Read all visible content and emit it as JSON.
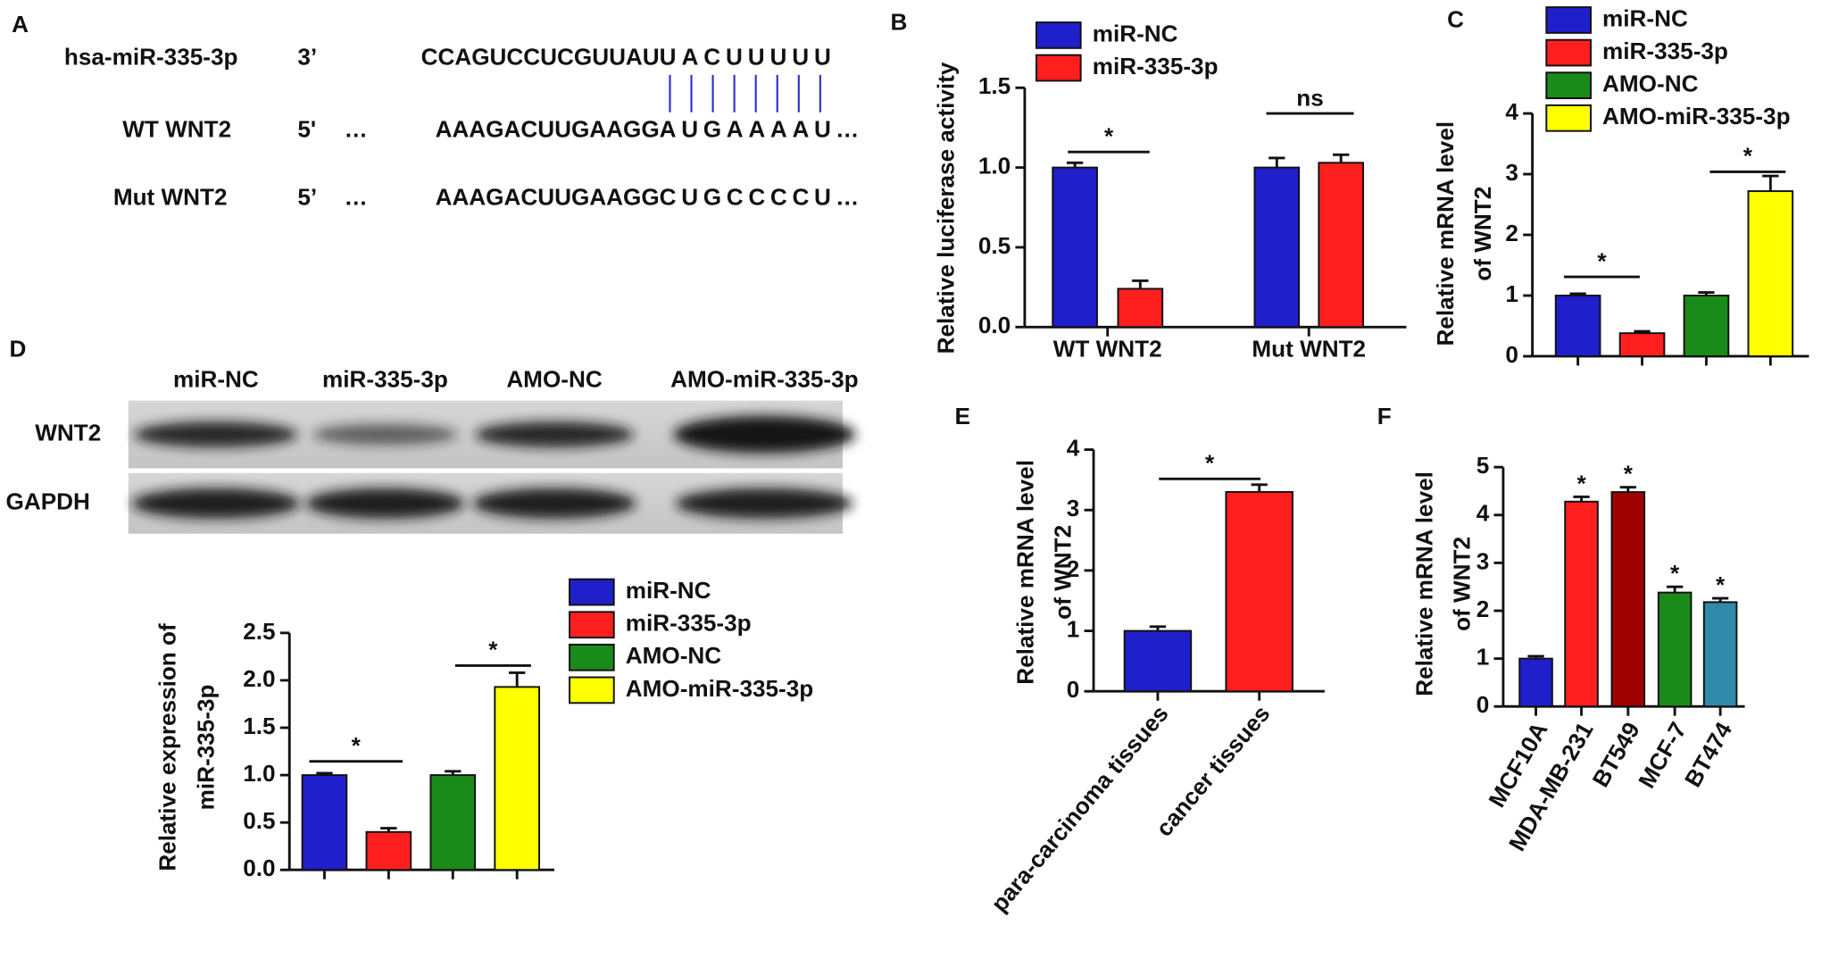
{
  "panel_labels": [
    "A",
    "B",
    "C",
    "D",
    "E",
    "F"
  ],
  "sequence_alignment": {
    "rows": [
      {
        "name": "hsa-miR-335-3p",
        "end": "3’",
        "prefix": "",
        "seq": "CCAGUCCUCGUUAU",
        "site": "UACUUUUU",
        "suffix": "",
        "color": "#ee1c1c"
      },
      {
        "name": "WT WNT2",
        "end": "5'",
        "prefix": "…",
        "seq": "AAAGACUUGAAGG",
        "site": "AUGAAAAU",
        "suffix": "…",
        "color": "#ee1c1c"
      },
      {
        "name": "Mut WNT2",
        "end": "5’",
        "prefix": "…",
        "seq": "AAAGACUUGAAGG",
        "site": "CUGCCCCU",
        "suffix": "…",
        "color": "#3a6e1e"
      }
    ]
  },
  "western_blot": {
    "lanes": [
      "miR-NC",
      "miR-335-3p",
      "AMO-NC",
      "AMO-miR-335-3p"
    ],
    "rows": [
      "WNT2",
      "GAPDH"
    ]
  },
  "chart_data": [
    {
      "type": "bar",
      "categories": [
        "WT WNT2",
        "Mut WNT2"
      ],
      "series": [
        {
          "name": "miR-NC",
          "color": "#1f1fcc",
          "values": [
            1.0,
            1.0
          ],
          "errors": [
            0.03,
            0.06
          ]
        },
        {
          "name": "miR-335-3p",
          "color": "#ff1f1f",
          "values": [
            0.24,
            1.03
          ],
          "errors": [
            0.05,
            0.05
          ]
        }
      ],
      "ylabel": [
        "Relative luciferase activity"
      ],
      "ylim": [
        0,
        1.5
      ],
      "yticks": [
        {
          "value": 0,
          "label": "0.0"
        },
        0.5,
        {
          "value": 1,
          "label": "1.0"
        },
        1.5
      ],
      "significance": [
        "*",
        "ns"
      ]
    },
    {
      "type": "bar",
      "categories": [
        null,
        null,
        null,
        null
      ],
      "series": [
        {
          "name": "miR-NC",
          "color": "#1f1fcc",
          "values": [
            1.0,
            null,
            null,
            null
          ],
          "errors": [
            0.03,
            null,
            null,
            null
          ]
        },
        {
          "name": "miR-335-3p",
          "color": "#ff1f1f",
          "values": [
            null,
            0.38,
            null,
            null
          ],
          "errors": [
            null,
            0.03,
            null,
            null
          ]
        },
        {
          "name": "AMO-NC",
          "color": "#1a8a1a",
          "values": [
            null,
            null,
            1.0,
            null
          ],
          "errors": [
            null,
            null,
            0.05,
            null
          ]
        },
        {
          "name": "AMO-miR-335-3p",
          "color": "#ffff00",
          "values": [
            null,
            null,
            null,
            2.72
          ],
          "errors": [
            null,
            null,
            null,
            0.25
          ]
        }
      ],
      "ylabel": [
        "Relative mRNA level",
        "of WNT2"
      ],
      "ylim": [
        0,
        4
      ],
      "yticks": [
        0,
        1,
        2,
        3,
        4
      ],
      "significance": [
        "*",
        "*"
      ]
    },
    {
      "type": "bar",
      "categories": [
        null,
        null,
        null,
        null
      ],
      "series": [
        {
          "name": "miR-NC",
          "color": "#1f1fcc",
          "values": [
            1.0,
            null,
            null,
            null
          ],
          "errors": [
            0.02,
            null,
            null,
            null
          ]
        },
        {
          "name": "miR-335-3p",
          "color": "#ff1f1f",
          "values": [
            null,
            0.4,
            null,
            null
          ],
          "errors": [
            null,
            0.04,
            null,
            null
          ]
        },
        {
          "name": "AMO-NC",
          "color": "#1a8a1a",
          "values": [
            null,
            null,
            1.0,
            null
          ],
          "errors": [
            null,
            null,
            0.04,
            null
          ]
        },
        {
          "name": "AMO-miR-335-3p",
          "color": "#ffff00",
          "values": [
            null,
            null,
            null,
            1.93
          ],
          "errors": [
            null,
            null,
            null,
            0.15
          ]
        }
      ],
      "ylabel": [
        "Relative expression of",
        "miR-335-3p"
      ],
      "ylim": [
        0,
        2.5
      ],
      "yticks": [
        {
          "value": 0,
          "label": "0.0"
        },
        0.5,
        {
          "value": 1,
          "label": "1.0"
        },
        1.5,
        {
          "value": 2,
          "label": "2.0"
        },
        2.5
      ],
      "significance": [
        "*",
        "*"
      ]
    },
    {
      "type": "bar",
      "categories": [
        "para-carcinoma tissues",
        "cancer tissues"
      ],
      "values": [
        1.0,
        3.3
      ],
      "errors": [
        0.07,
        0.12
      ],
      "colors": [
        "#1f1fcc",
        "#ff1f1f"
      ],
      "ylabel": [
        "Relative mRNA level",
        "of WNT2"
      ],
      "ylim": [
        0,
        4
      ],
      "yticks": [
        0,
        1,
        2,
        3,
        4
      ],
      "significance": [
        "*"
      ]
    },
    {
      "type": "bar",
      "categories": [
        "MCF10A",
        "MDA-MB-231",
        "BT549",
        "MCF-7",
        "BT474"
      ],
      "values": [
        1.0,
        4.28,
        4.48,
        2.38,
        2.18
      ],
      "errors": [
        0.05,
        0.1,
        0.1,
        0.12,
        0.08
      ],
      "colors": [
        "#1f1fcc",
        "#ff1f1f",
        "#a00000",
        "#1a8a1a",
        "#2e8aa8"
      ],
      "bar_labels": [
        null,
        "*",
        "*",
        "*",
        "*"
      ],
      "ylabel": [
        "Relative mRNA level",
        "of WNT2"
      ],
      "ylim": [
        0,
        5
      ],
      "yticks": [
        0,
        1,
        2,
        3,
        4,
        5
      ]
    }
  ]
}
